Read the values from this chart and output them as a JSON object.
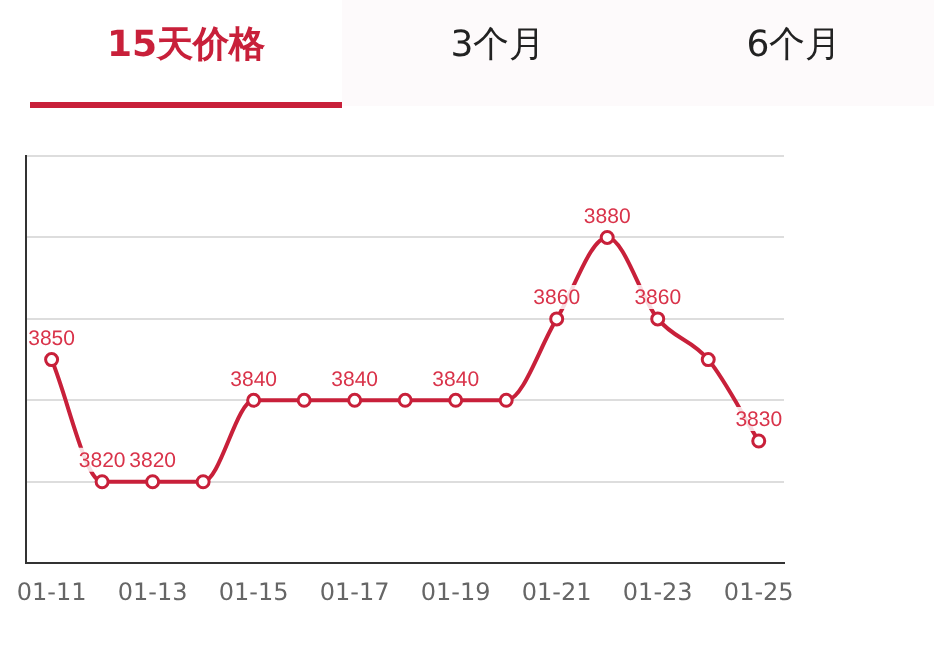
{
  "chart_data": {
    "type": "line",
    "title": "15天价格",
    "annotations": [
      "3个月",
      "6个月"
    ],
    "categories": [
      "01-11",
      null,
      "01-13",
      null,
      "01-15",
      null,
      "01-17",
      null,
      "01-19",
      null,
      "01-21",
      null,
      "01-23",
      null,
      "01-25"
    ],
    "series": [
      {
        "color": "#c8203a",
        "values": [
          3850,
          3820,
          3820,
          3820,
          3840,
          3840,
          3840,
          3840,
          3840,
          3840,
          3860,
          3880,
          3860,
          3850,
          3830
        ],
        "value_labels": [
          "3850",
          "3820",
          "3820",
          null,
          "3840",
          null,
          "3840",
          null,
          "3840",
          null,
          "3860",
          "3880",
          "3860",
          null,
          "3830"
        ]
      }
    ],
    "ylim": [
      3800,
      3900
    ],
    "yticks": [
      {
        "value": 3800,
        "label": null
      },
      {
        "value": 3820,
        "label": null
      },
      {
        "value": 3840,
        "label": null
      },
      {
        "value": 3860,
        "label": null
      },
      {
        "value": 3880,
        "label": null
      },
      {
        "value": 3900,
        "label": null
      }
    ],
    "tick_labels": "x",
    "grid": "y",
    "marker": "circle",
    "line_style": "solid",
    "legend": false
  }
}
